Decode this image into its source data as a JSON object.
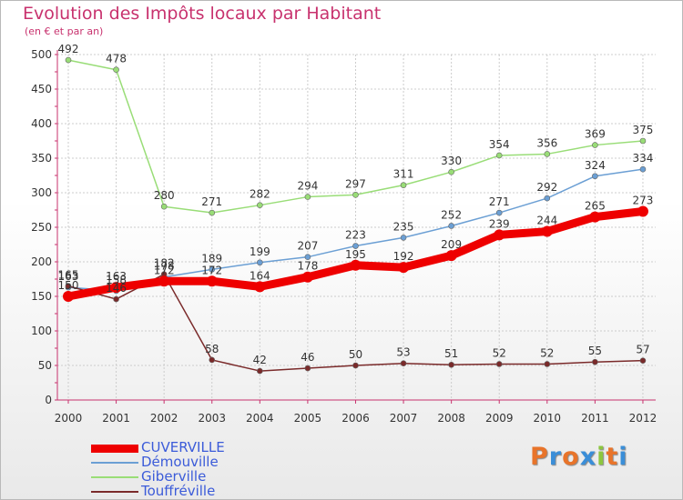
{
  "header": {
    "title": "Evolution des Impôts locaux par Habitant",
    "subtitle": "(en € et par an)"
  },
  "brand": {
    "letters": [
      "P",
      "r",
      "o",
      "x",
      "i",
      "t",
      "i"
    ],
    "colors": [
      "#e8742a",
      "#3a8ed8",
      "#e8742a",
      "#3a8ed8",
      "#8cc63f",
      "#e8742a",
      "#3a8ed8"
    ]
  },
  "chart_data": {
    "type": "line",
    "x": [
      "2000",
      "2001",
      "2002",
      "2003",
      "2004",
      "2005",
      "2006",
      "2007",
      "2008",
      "2009",
      "2010",
      "2011",
      "2012"
    ],
    "ylim": [
      0,
      500
    ],
    "yticks": [
      "0",
      "50",
      "100",
      "150",
      "200",
      "250",
      "300",
      "350",
      "400",
      "450",
      "500"
    ],
    "grid": true,
    "legend_position": "bottom-left",
    "series": [
      {
        "name": "CUVERVILLE",
        "color": "#ee0000",
        "values": [
          150,
          163,
          172,
          172,
          164,
          178,
          195,
          192,
          209,
          239,
          244,
          265,
          273
        ],
        "labels": [
          "150",
          "163",
          "172",
          "172",
          "164",
          "178",
          "195",
          "192",
          "209",
          "239",
          "244",
          "265",
          "273"
        ]
      },
      {
        "name": "Démouville",
        "color": "#6b9fd4",
        "values": [
          163,
          158,
          178,
          189,
          199,
          207,
          223,
          235,
          252,
          271,
          292,
          324,
          334
        ],
        "labels": [
          "163",
          "158",
          "178",
          "189",
          "199",
          "207",
          "223",
          "235",
          "252",
          "271",
          "292",
          "324",
          "334"
        ]
      },
      {
        "name": "Giberville",
        "color": "#99dd77",
        "values": [
          492,
          478,
          280,
          271,
          282,
          294,
          297,
          311,
          330,
          354,
          356,
          369,
          375
        ],
        "labels": [
          "492",
          "478",
          "280",
          "271",
          "282",
          "294",
          "297",
          "311",
          "330",
          "354",
          "356",
          "369",
          "375"
        ]
      },
      {
        "name": "Touffréville",
        "color": "#7a2a2a",
        "values": [
          165,
          146,
          182,
          58,
          42,
          46,
          50,
          53,
          51,
          52,
          52,
          55,
          57
        ],
        "labels": [
          "165",
          "146",
          "182",
          "58",
          "42",
          "46",
          "50",
          "53",
          "51",
          "52",
          "52",
          "55",
          "57"
        ]
      }
    ]
  }
}
